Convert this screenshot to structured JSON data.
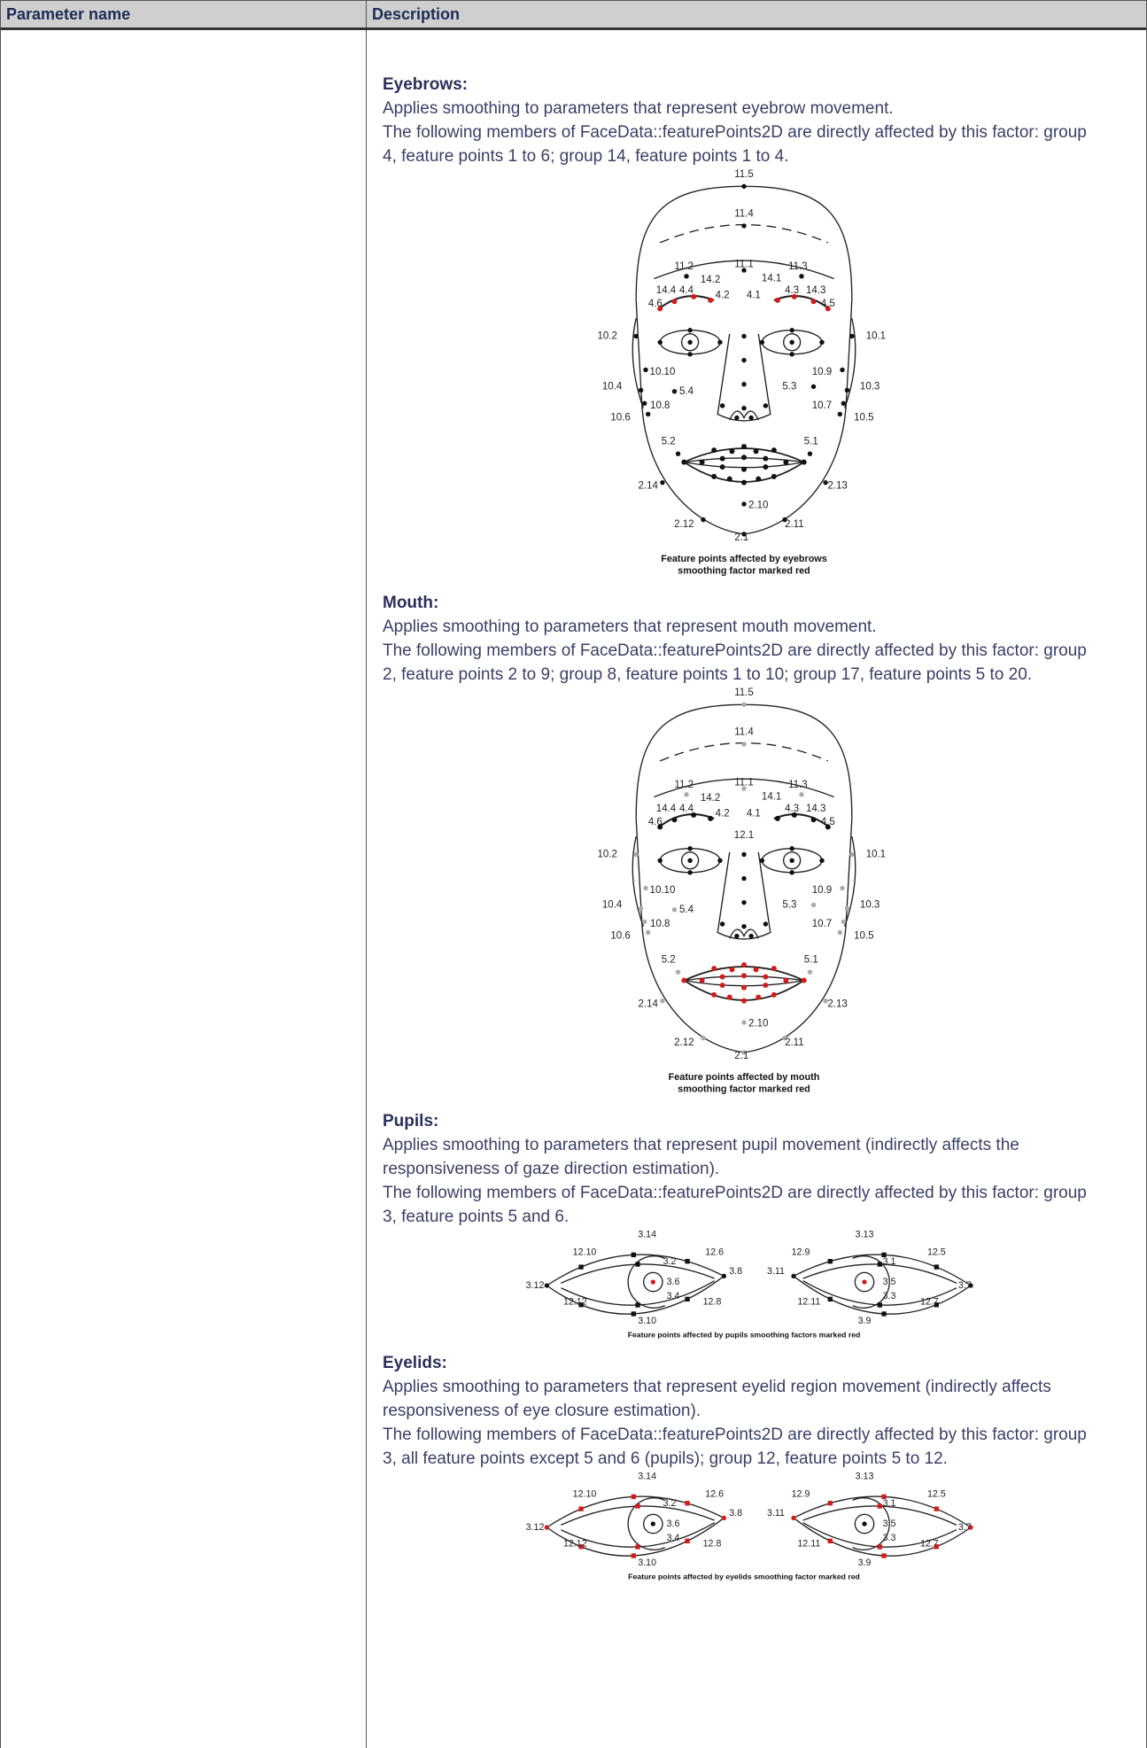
{
  "table": {
    "header": {
      "parameter_name": "Parameter name",
      "description": "Description"
    },
    "sections": [
      {
        "heading": "Eyebrows:",
        "paragraphs": [
          "Applies smoothing to parameters that represent eyebrow movement.",
          "The following members of FaceData::featurePoints2D are directly affected by this factor: group 4, feature points 1 to 6; group 14, feature points 1 to 4."
        ],
        "figure": {
          "labels": [
            "11.5",
            "11.4",
            "11.2",
            "11.1",
            "11.3",
            "14.4",
            "4.4",
            "14.2",
            "4.2",
            "4.1",
            "14.1",
            "4.3",
            "14.3",
            "4.6",
            "4.5",
            "10.2",
            "10.1",
            "10.10",
            "10.9",
            "10.4",
            "5.4",
            "5.3",
            "10.3",
            "10.8",
            "10.7",
            "10.6",
            "10.5",
            "5.2",
            "5.1",
            "2.14",
            "2.13",
            "2.10",
            "2.12",
            "2.11",
            "2.1"
          ],
          "caption": [
            "Feature points affected by eyebrows",
            "smoothing factor marked red"
          ]
        }
      },
      {
        "heading": "Mouth:",
        "paragraphs": [
          "Applies smoothing to parameters that represent mouth movement.",
          "The following members of FaceData::featurePoints2D are directly affected by this factor: group 2, feature points 2 to 9; group 8, feature points 1 to 10; group 17, feature points 5 to 20."
        ],
        "figure": {
          "labels": [
            "11.5",
            "11.4",
            "11.2",
            "11.1",
            "11.3",
            "14.4",
            "4.4",
            "14.2",
            "4.2",
            "4.1",
            "14.1",
            "4.3",
            "14.3",
            "4.6",
            "4.5",
            "10.2",
            "10.1",
            "10.10",
            "10.9",
            "10.4",
            "5.4",
            "5.3",
            "10.3",
            "10.8",
            "10.7",
            "10.6",
            "10.5",
            "5.2",
            "5.1",
            "2.14",
            "2.13",
            "2.10",
            "2.12",
            "2.11",
            "2.1",
            "12.1"
          ],
          "caption": [
            "Feature points affected by mouth",
            "smoothing factor marked red"
          ]
        }
      },
      {
        "heading": "Pupils:",
        "paragraphs": [
          "Applies smoothing to parameters that represent pupil movement (indirectly affects the responsiveness of gaze direction estimation).",
          "The following members of FaceData::featurePoints2D are directly affected by this factor:  group 3, feature points 5 and 6."
        ],
        "figure": {
          "labels": [
            "3.14",
            "12.10",
            "12.6",
            "3.2",
            "3.8",
            "3.12",
            "3.6",
            "3.4",
            "12.12",
            "12.8",
            "3.10",
            "3.13",
            "12.9",
            "12.5",
            "3.1",
            "3.11",
            "3.5",
            "3.7",
            "3.3",
            "12.11",
            "12.7",
            "3.9"
          ],
          "caption": [
            "Feature points affected by pupils smoothing factors marked red"
          ]
        }
      },
      {
        "heading": "Eyelids:",
        "paragraphs": [
          "Applies smoothing to parameters that represent eyelid region movement (indirectly affects responsiveness of eye closure estimation).",
          "The following members of FaceData::featurePoints2D are directly affected by this factor:  group 3, all feature points except 5 and 6 (pupils); group 12, feature points 5 to 12."
        ],
        "figure": {
          "labels": [
            "3.14",
            "12.10",
            "12.6",
            "3.2",
            "3.8",
            "3.12",
            "3.6",
            "3.4",
            "12.12",
            "12.8",
            "3.10",
            "3.13",
            "12.9",
            "12.5",
            "3.1",
            "3.11",
            "3.5",
            "3.7",
            "3.3",
            "12.11",
            "12.7",
            "3.9"
          ],
          "caption": [
            "Feature points affected by eyelids smoothing factor marked red"
          ]
        }
      }
    ]
  }
}
